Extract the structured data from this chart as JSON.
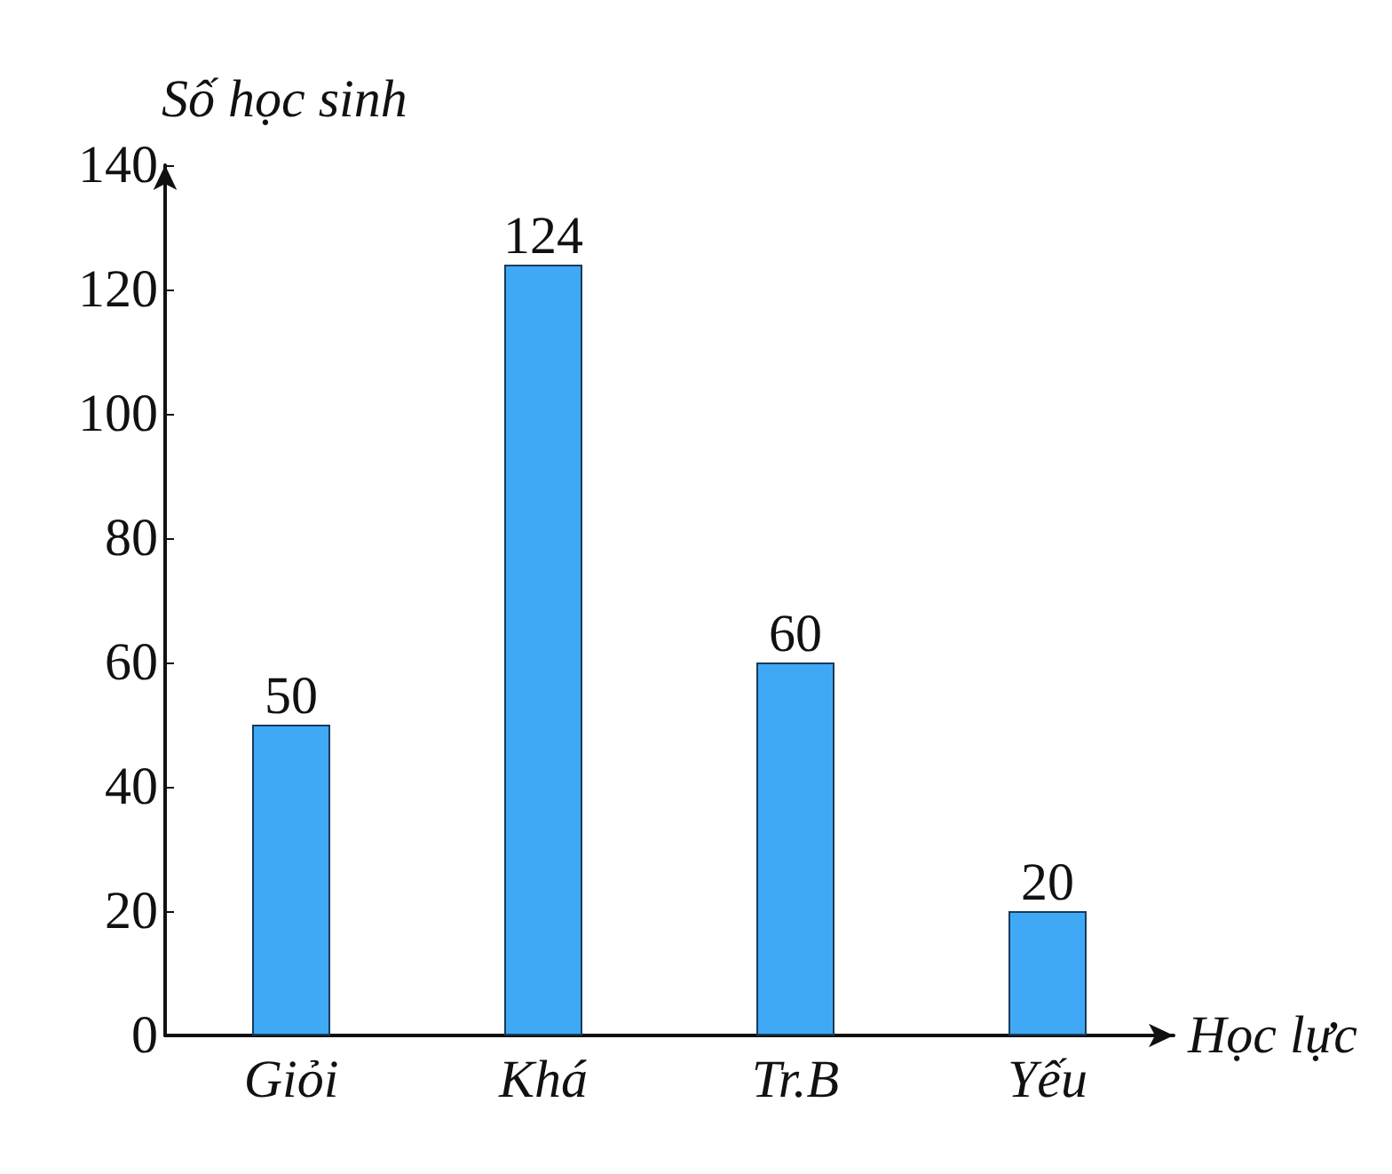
{
  "chart_data": {
    "type": "bar",
    "xlabel": "Học lực",
    "ylabel": "Số học sinh",
    "categories": [
      "Giỏi",
      "Khá",
      "Tr.B",
      "Yếu"
    ],
    "values": [
      50,
      124,
      60,
      20
    ],
    "color": "#3fa9f5",
    "ylim": [
      0,
      140
    ],
    "yticks": [
      0,
      20,
      40,
      60,
      80,
      100,
      120,
      140
    ],
    "data_labels": true
  }
}
